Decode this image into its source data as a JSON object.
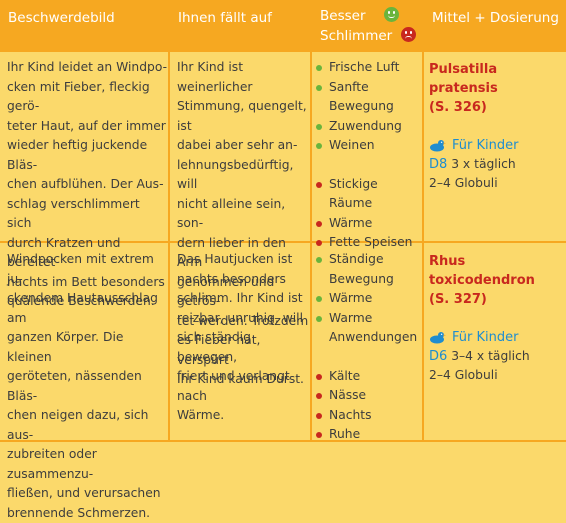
{
  "colors": {
    "header_bg": "#f6a821",
    "body_bg": "#fbd96b",
    "good_dot": "#6ab43c",
    "bad_dot": "#c8281e",
    "remedy_red": "#c8281e",
    "kinder_blue": "#1f8dcf"
  },
  "header": {
    "col1": "Beschwerdebild",
    "col2": "Ihnen fällt auf",
    "col3_better": "Besser",
    "col3_worse": "Schlimmer",
    "col4": "Mittel + Dosierung",
    "better_icon": "smiley-happy-icon",
    "worse_icon": "smiley-sad-icon"
  },
  "rows": [
    {
      "complaint": [
        "Ihr Kind leidet an Windpo-",
        "cken mit Fieber, fleckig gerö-",
        "teter Haut, auf der immer",
        "wieder heftig juckende Bläs-",
        "chen aufblühen. Der Aus-",
        "schlag verschlimmert sich",
        "durch Kratzen und bereitet",
        "nachts im Bett besonders",
        "quälende Beschwerden."
      ],
      "notice": [
        "Ihr Kind ist weinerlicher",
        "Stimmung, quengelt, ist",
        "dabei aber sehr an-",
        "lehnungsbedürftig, will",
        "nicht alleine sein, son-",
        "dern lieber in den Arm",
        "genommen und getrös-",
        "tet werden. Trotzdem",
        "es Fieber hat, verspürt",
        "Ihr Kind kaum Durst."
      ],
      "better": [
        [
          "Frische Luft"
        ],
        [
          "Sanfte",
          "Bewegung"
        ],
        [
          "Zuwendung"
        ],
        [
          "Weinen"
        ]
      ],
      "worse": [
        [
          "Stickige Räume"
        ],
        [
          "Wärme"
        ],
        [
          "Fette Speisen"
        ]
      ],
      "remedy_name": "Pulsatilla pratensis",
      "remedy_page": "(S. 326)",
      "kinder_label": "Für Kinder",
      "kinder_icon": "duck-icon",
      "potency": "D8",
      "dose_freq": "3 x täglich",
      "dose_amount": "2–4 Globuli"
    },
    {
      "complaint": [
        "Windpocken mit extrem ju-",
        "ckendem Hautausschlag am",
        "ganzen Körper. Die kleinen",
        "geröteten, nässenden Bläs-",
        "chen neigen dazu, sich aus-",
        "zubreiten oder zusammenzu-",
        "fließen, und verursachen",
        "brennende Schmerzen."
      ],
      "notice": [
        "Das Hautjucken ist",
        "nachts besonders",
        "schlimm. Ihr Kind ist",
        "reizbar, unruhig, will",
        "sich ständig bewegen,",
        "friert und verlangt nach",
        "Wärme."
      ],
      "better": [
        [
          "Ständige",
          "Bewegung"
        ],
        [
          "Wärme"
        ],
        [
          "Warme",
          "Anwendungen"
        ]
      ],
      "worse": [
        [
          "Kälte"
        ],
        [
          "Nässe"
        ],
        [
          "Nachts"
        ],
        [
          "Ruhe"
        ]
      ],
      "remedy_name": "Rhus toxicodendron",
      "remedy_page": "(S. 327)",
      "kinder_label": "Für Kinder",
      "kinder_icon": "duck-icon",
      "potency": "D6",
      "dose_freq": "3–4 x täglich",
      "dose_amount": "2–4 Globuli"
    }
  ]
}
